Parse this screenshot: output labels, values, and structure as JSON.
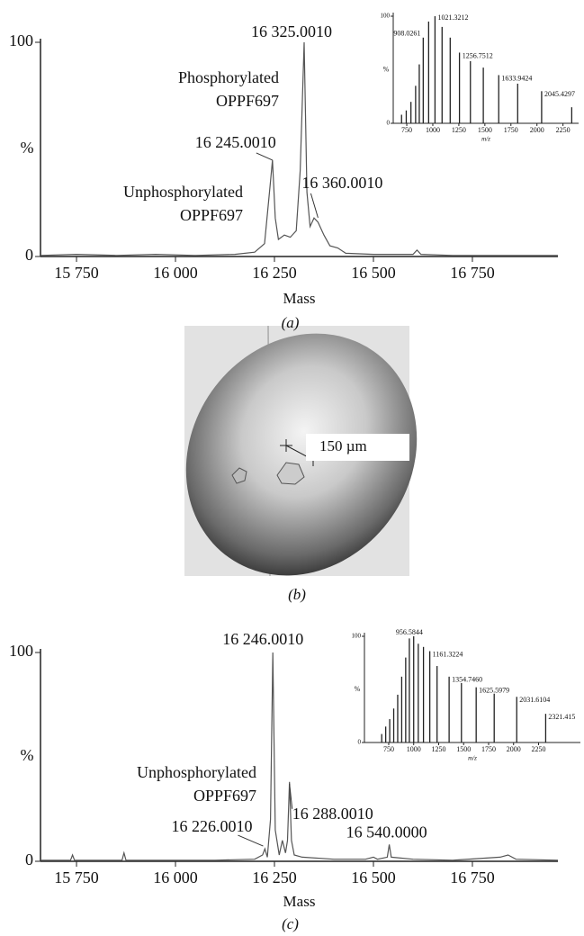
{
  "chart_data": [
    {
      "type": "line",
      "caption": "(a)",
      "xlabel": "Mass",
      "ylabel": "%",
      "color": "#555555",
      "x": [
        15659,
        15750,
        15850,
        15950,
        16050,
        16150,
        16200,
        16225,
        16240,
        16245,
        16252,
        16260,
        16275,
        16290,
        16305,
        16315,
        16325,
        16332,
        16340,
        16350,
        16360,
        16375,
        16390,
        16410,
        16430,
        16500,
        16600,
        16610,
        16620,
        16700,
        16800,
        16966
      ],
      "values": [
        0.5,
        1,
        0.5,
        1,
        0.5,
        1,
        2,
        6,
        35,
        45,
        18,
        8,
        10,
        9,
        12,
        40,
        100,
        30,
        14,
        18,
        16,
        10,
        5,
        4,
        1.5,
        1,
        1,
        3,
        1,
        0.5,
        0.5,
        0.5
      ],
      "xlim": [
        15659,
        16966
      ],
      "ylim": [
        0,
        100
      ],
      "xticks": [
        {
          "value": 15750,
          "label": "15 750"
        },
        {
          "value": 16000,
          "label": "16 000"
        },
        {
          "value": 16250,
          "label": "16 250"
        },
        {
          "value": 16500,
          "label": "16 500"
        },
        {
          "value": 16750,
          "label": "16 750"
        }
      ],
      "yticks": [
        0,
        100
      ],
      "annotations": [
        {
          "text": "16 325.0010",
          "x": 16325,
          "y": 100
        },
        {
          "lines": [
            "Phosphorylated",
            "OPPF697"
          ]
        },
        {
          "text": "16 245.0010",
          "x": 16245,
          "y": 45
        },
        {
          "lines": [
            "Unphosphorylated",
            "OPPF697"
          ]
        },
        {
          "text": "16 360.0010",
          "x": 16360,
          "y": 16
        }
      ]
    },
    {
      "type": "stem",
      "xlabel": "m/z",
      "ylabel": "%",
      "color": "#222222",
      "x": [
        700,
        745,
        790,
        835,
        870,
        908,
        960,
        1021,
        1089,
        1167,
        1256,
        1361,
        1485,
        1633,
        1815,
        2045,
        2334
      ],
      "values": [
        8,
        12,
        20,
        35,
        55,
        80,
        95,
        100,
        90,
        80,
        66,
        58,
        52,
        45,
        37,
        30,
        15
      ],
      "xlim": [
        620,
        2400
      ],
      "ylim": [
        0,
        100
      ],
      "xticks": [
        750,
        1000,
        1250,
        1500,
        1750,
        2000,
        2250
      ],
      "yticks": [
        0,
        100
      ],
      "annotations": [
        {
          "text": "908.0261",
          "x": 908.0261,
          "y": 80
        },
        {
          "text": "1021.3212",
          "x": 1021.3212,
          "y": 100
        },
        {
          "text": "1256.7512",
          "x": 1256.7512,
          "y": 66
        },
        {
          "text": "1633.9424",
          "x": 1633.9424,
          "y": 45
        },
        {
          "text": "2045.4297",
          "x": 2045.4297,
          "y": 30
        }
      ]
    },
    {
      "type": "line",
      "caption": "(c)",
      "xlabel": "Mass",
      "ylabel": "%",
      "color": "#555555",
      "x": [
        15659,
        15735,
        15740,
        15745,
        15865,
        15870,
        15875,
        16000,
        16100,
        16200,
        16220,
        16226,
        16232,
        16240,
        16246,
        16252,
        16262,
        16270,
        16278,
        16283,
        16288,
        16293,
        16300,
        16320,
        16400,
        16480,
        16500,
        16510,
        16535,
        16540,
        16545,
        16600,
        16700,
        16820,
        16840,
        16860,
        16966
      ],
      "values": [
        0.5,
        0.5,
        3,
        0.5,
        0.5,
        4,
        0.5,
        0.5,
        0.5,
        1,
        3,
        6,
        2,
        20,
        100,
        15,
        3,
        10,
        4,
        10,
        38,
        10,
        3,
        2,
        1,
        1,
        2,
        1,
        2,
        8,
        2,
        1,
        0.5,
        2,
        3,
        1,
        0.5
      ],
      "xlim": [
        15659,
        16966
      ],
      "ylim": [
        0,
        100
      ],
      "xticks": [
        {
          "value": 15750,
          "label": "15 750"
        },
        {
          "value": 16000,
          "label": "16 000"
        },
        {
          "value": 16250,
          "label": "16 250"
        },
        {
          "value": 16500,
          "label": "16 500"
        },
        {
          "value": 16750,
          "label": "16 750"
        }
      ],
      "yticks": [
        0,
        100
      ],
      "annotations": [
        {
          "text": "16 246.0010",
          "x": 16246,
          "y": 100
        },
        {
          "lines": [
            "Unphosphorylated",
            "OPPF697"
          ]
        },
        {
          "text": "16 226.0010",
          "x": 16226,
          "y": 6
        },
        {
          "text": "16 288.0010",
          "x": 16288,
          "y": 38
        },
        {
          "text": "16 540.0000",
          "x": 16540,
          "y": 8
        }
      ]
    },
    {
      "type": "stem",
      "xlabel": "m/z",
      "ylabel": "%",
      "color": "#222222",
      "x": [
        680,
        720,
        760,
        800,
        840,
        880,
        920,
        956.5844,
        1000,
        1046,
        1098,
        1161.3224,
        1234,
        1354.746,
        1478,
        1625.5979,
        1806,
        2031.6104,
        2321.415
      ],
      "values": [
        8,
        15,
        22,
        32,
        45,
        62,
        80,
        98,
        100,
        93,
        90,
        86,
        72,
        62,
        56,
        52,
        46,
        43,
        27
      ],
      "xlim": [
        507,
        2669
      ],
      "ylim": [
        0,
        100
      ],
      "xticks": [
        750,
        1000,
        1250,
        1500,
        1750,
        2000,
        2250
      ],
      "yticks": [
        0,
        100
      ],
      "annotations": [
        {
          "text": "956.5844",
          "x": 956.5844,
          "y": 98
        },
        {
          "text": "1161.3224",
          "x": 1161.3224,
          "y": 86
        },
        {
          "text": "1354.7460",
          "x": 1354.746,
          "y": 62
        },
        {
          "text": "1625.5979",
          "x": 1625.5979,
          "y": 52
        },
        {
          "text": "2031.6104",
          "x": 2031.6104,
          "y": 43
        },
        {
          "text": "2321.415",
          "x": 2321.415,
          "y": 27
        }
      ]
    }
  ],
  "photo": {
    "scale_label": "150 µm",
    "caption": "(b)"
  }
}
